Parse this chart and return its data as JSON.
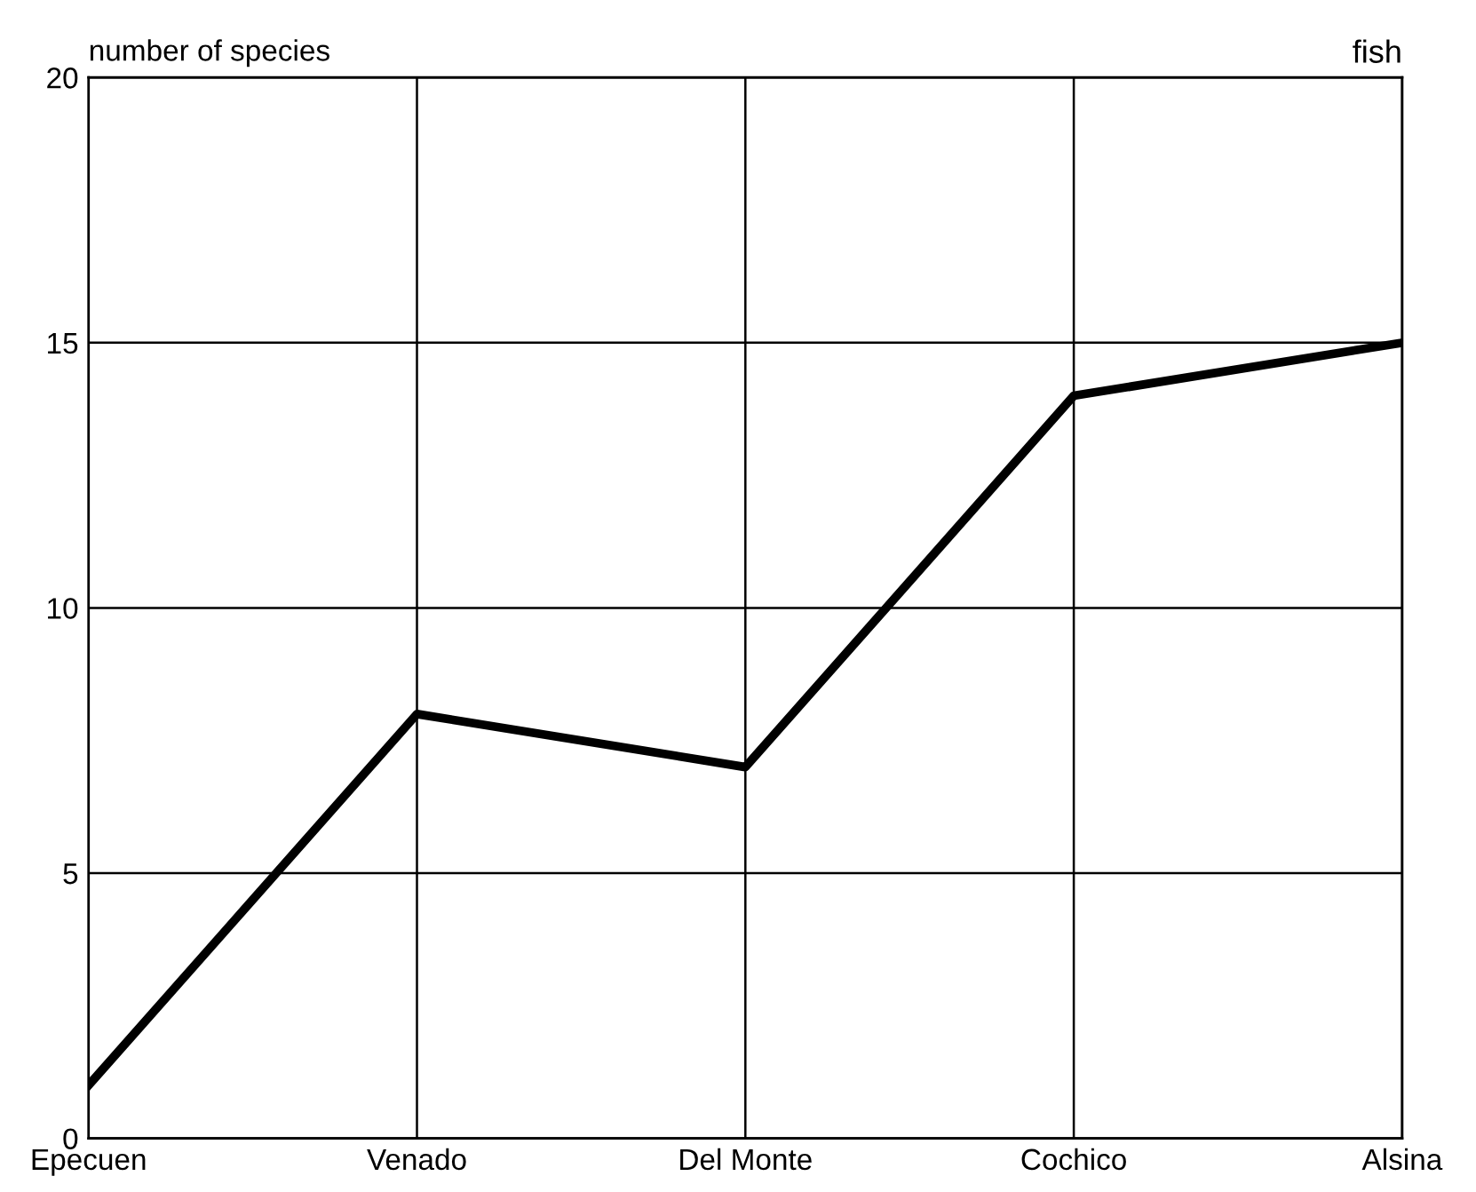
{
  "chart_data": {
    "type": "line",
    "title": "fish",
    "ylabel": "number of species",
    "categories": [
      "Epecuen",
      "Venado",
      "Del Monte",
      "Cochico",
      "Alsina"
    ],
    "series": [
      {
        "color": "#000000",
        "values": [
          1,
          8,
          7,
          14,
          15
        ]
      }
    ],
    "ylim": [
      0,
      20
    ],
    "yticks": [
      0,
      5,
      10,
      15,
      20
    ],
    "grid": true,
    "marker": "none",
    "line_style": "solid"
  }
}
